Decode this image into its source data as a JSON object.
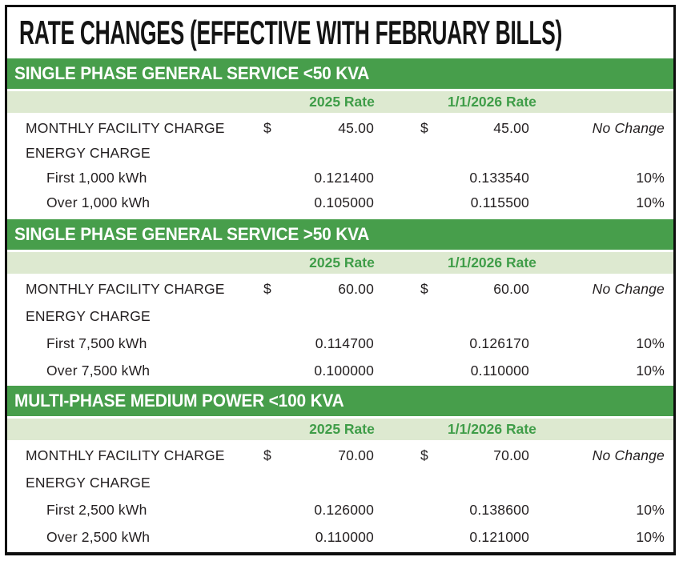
{
  "title": "RATE CHANGES (EFFECTIVE WITH FEBRUARY BILLS)",
  "colors": {
    "section_bar_green": "#479e4b",
    "header_row_green": "#dde9d0",
    "header_text_green": "#3f9d48",
    "text_dark": "#231f20",
    "border_black": "#0d0d0d"
  },
  "sections": [
    {
      "title": "SINGLE PHASE GENERAL SERVICE <50 KVA",
      "col_headers": [
        "2025 Rate",
        "1/1/2026 Rate"
      ],
      "rows": [
        {
          "label": "MONTHLY FACILITY CHARGE",
          "indent": false,
          "cur_2025": "$",
          "rate_2025": "45.00",
          "cur_2026": "$",
          "rate_2026": "45.00",
          "change": "No Change",
          "change_italic": true
        },
        {
          "label": "ENERGY CHARGE",
          "indent": false,
          "cur_2025": "",
          "rate_2025": "",
          "cur_2026": "",
          "rate_2026": "",
          "change": "",
          "change_italic": false
        },
        {
          "label": "First 1,000 kWh",
          "indent": true,
          "cur_2025": "",
          "rate_2025": "0.121400",
          "cur_2026": "",
          "rate_2026": "0.133540",
          "change": "10%",
          "change_italic": false
        },
        {
          "label": "Over 1,000 kWh",
          "indent": true,
          "cur_2025": "",
          "rate_2025": "0.105000",
          "cur_2026": "",
          "rate_2026": "0.115500",
          "change": "10%",
          "change_italic": false
        }
      ]
    },
    {
      "title": "SINGLE PHASE GENERAL SERVICE >50 KVA",
      "col_headers": [
        "2025 Rate",
        "1/1/2026 Rate"
      ],
      "rows": [
        {
          "label": "MONTHLY FACILITY CHARGE",
          "indent": false,
          "cur_2025": "$",
          "rate_2025": "60.00",
          "cur_2026": "$",
          "rate_2026": "60.00",
          "change": "No Change",
          "change_italic": true
        },
        {
          "label": "ENERGY CHARGE",
          "indent": false,
          "cur_2025": "",
          "rate_2025": "",
          "cur_2026": "",
          "rate_2026": "",
          "change": "",
          "change_italic": false
        },
        {
          "label": "First 7,500 kWh",
          "indent": true,
          "cur_2025": "",
          "rate_2025": "0.114700",
          "cur_2026": "",
          "rate_2026": "0.126170",
          "change": "10%",
          "change_italic": false
        },
        {
          "label": "Over 7,500 kWh",
          "indent": true,
          "cur_2025": "",
          "rate_2025": "0.100000",
          "cur_2026": "",
          "rate_2026": "0.110000",
          "change": "10%",
          "change_italic": false
        }
      ]
    },
    {
      "title": "MULTI-PHASE MEDIUM POWER <100 KVA",
      "col_headers": [
        "2025 Rate",
        "1/1/2026 Rate"
      ],
      "rows": [
        {
          "label": "MONTHLY FACILITY CHARGE",
          "indent": false,
          "cur_2025": "$",
          "rate_2025": "70.00",
          "cur_2026": "$",
          "rate_2026": "70.00",
          "change": "No Change",
          "change_italic": true
        },
        {
          "label": "ENERGY CHARGE",
          "indent": false,
          "cur_2025": "",
          "rate_2025": "",
          "cur_2026": "",
          "rate_2026": "",
          "change": "",
          "change_italic": false
        },
        {
          "label": "First 2,500 kWh",
          "indent": true,
          "cur_2025": "",
          "rate_2025": "0.126000",
          "cur_2026": "",
          "rate_2026": "0.138600",
          "change": "10%",
          "change_italic": false
        },
        {
          "label": "Over 2,500 kWh",
          "indent": true,
          "cur_2025": "",
          "rate_2025": "0.110000",
          "cur_2026": "",
          "rate_2026": "0.121000",
          "change": "10%",
          "change_italic": false
        }
      ]
    }
  ]
}
